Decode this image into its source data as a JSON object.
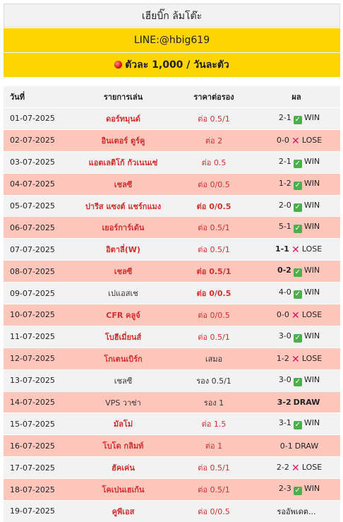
{
  "header": {
    "title": "เฮียบิ๊ก ล้มโต๊ะ",
    "line": "LINE:@hbig619",
    "promo": "ตัวละ 1,000 / วันละตัว"
  },
  "table": {
    "columns": [
      "วันที่",
      "รายการเล่น",
      "ราคาต่อรอง",
      "ผล"
    ],
    "rows": [
      {
        "date": "01-07-2025",
        "team": "ดอร์ทมุนด์",
        "odds": "ต่อ 0.5/1",
        "score": "2-1",
        "result": "WIN"
      },
      {
        "date": "02-07-2025",
        "team": "อินเตอร์ ตูร์คู",
        "odds": "ต่อ 2",
        "score": "0-0",
        "result": "LOSE"
      },
      {
        "date": "03-07-2025",
        "team": "แอตเลติโก้ กัวเนนเซ่",
        "odds": "ต่อ 0.5",
        "score": "2-1",
        "result": "WIN"
      },
      {
        "date": "04-07-2025",
        "team": "เชลซี",
        "odds": "ต่อ 0/0.5",
        "score": "1-2",
        "result": "WIN"
      },
      {
        "date": "05-07-2025",
        "team": "ปารีส แซงต์ แชร์กแมง",
        "odds": "ต่อ 0/0.5",
        "score": "2-0",
        "result": "WIN"
      },
      {
        "date": "06-07-2025",
        "team": "เยอร์การ์เด้น",
        "odds": "ต่อ 0.5/1",
        "score": "5-1",
        "result": "WIN"
      },
      {
        "date": "07-07-2025",
        "team": "อิตาลี่(W)",
        "odds": "ต่อ 0.5/1",
        "score": "1-1",
        "result": "LOSE"
      },
      {
        "date": "08-07-2025",
        "team": "เชลซี",
        "odds": "ต่อ 0.5/1",
        "score": "0-2",
        "result": "WIN"
      },
      {
        "date": "09-07-2025",
        "team": "เปแอสเช",
        "odds": "ต่อ 0/0.5",
        "score": "4-0",
        "result": "WIN"
      },
      {
        "date": "10-07-2025",
        "team": "CFR คลูจ์",
        "odds": "ต่อ 0/0.5",
        "score": "0-0",
        "result": "LOSE"
      },
      {
        "date": "11-07-2025",
        "team": "โบฮีเมี่ยนส์",
        "odds": "ต่อ 0.5/1",
        "score": "3-0",
        "result": "WIN"
      },
      {
        "date": "12-07-2025",
        "team": "โกเตนเบิร์ก",
        "odds": "เสมอ",
        "score": "1-2",
        "result": "LOSE"
      },
      {
        "date": "13-07-2025",
        "team": "เชลซี",
        "odds": "รอง 0.5/1",
        "score": "3-0",
        "result": "WIN"
      },
      {
        "date": "14-07-2025",
        "team": "VPS วาซ่า",
        "odds": "รอง 1",
        "score": "3-2",
        "result": "DRAW"
      },
      {
        "date": "15-07-2025",
        "team": "มัลโม่",
        "odds": "ต่อ  1.5",
        "score": "3-1",
        "result": "WIN"
      },
      {
        "date": "16-07-2025",
        "team": "โบโด กลิมท์",
        "odds": "ต่อ 1",
        "score": "0-1",
        "result": "DRAW"
      },
      {
        "date": "17-07-2025",
        "team": "ฮัคเค่น",
        "odds": "ต่อ 0.5/1",
        "score": "2-2",
        "result": "LOSE"
      },
      {
        "date": "18-07-2025",
        "team": "โคเปนเฮเก้น",
        "odds": "ต่อ 0.5/1",
        "score": "2-3",
        "result": "WIN"
      },
      {
        "date": "19-07-2025",
        "team": "คูพีเอส",
        "odds": "ต่อ 0/0.5",
        "score": "",
        "result": "รออัพเดต..."
      }
    ]
  },
  "colors": {
    "accent": "#ffd500",
    "row_alt": "#ffc6bc",
    "team_red": "#d32f2f",
    "win_green": "#4cae4c",
    "lose_pink": "#e0115f"
  },
  "icons": {
    "win": "check-box-icon",
    "lose": "cross-icon",
    "promo": "red-dot-icon"
  }
}
